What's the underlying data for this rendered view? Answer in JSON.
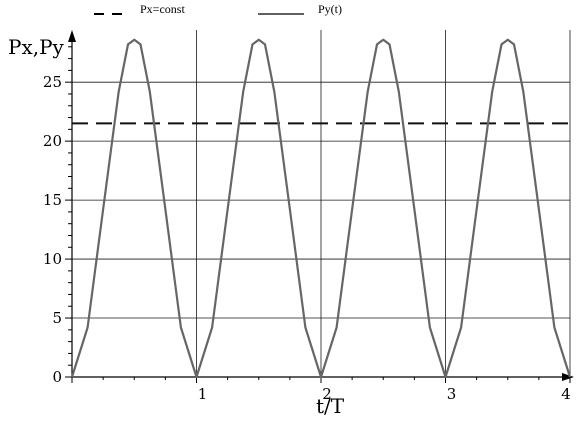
{
  "chart_data": {
    "type": "line",
    "xlabel": "t/T",
    "ylabel": "Px,Py",
    "xlim": [
      0,
      4
    ],
    "ylim": [
      0,
      29
    ],
    "x_ticks": [
      1,
      2,
      3,
      4
    ],
    "x_tick_labels": [
      "1",
      "2",
      "3",
      "4"
    ],
    "y_ticks": [
      0,
      5,
      10,
      15,
      20,
      25
    ],
    "y_tick_labels": [
      "0",
      "5",
      "10",
      "15",
      "20",
      "25"
    ],
    "grid": true,
    "legend_placement": "top-left",
    "legend": [
      {
        "label": "Px=const",
        "style": "dashed",
        "color": "#000000"
      },
      {
        "label": "Py(t)",
        "style": "solid",
        "color": "#000000"
      }
    ],
    "series": [
      {
        "name": "Px=const",
        "style": "dashed",
        "color": "#111111",
        "x": [
          0,
          4
        ],
        "y": [
          21.5,
          21.5
        ]
      },
      {
        "name": "Py(t)",
        "style": "solid",
        "color": "#666666",
        "x": [
          0,
          0.125,
          0.25,
          0.375,
          0.45,
          0.5,
          0.55,
          0.625,
          0.75,
          0.875,
          1.0,
          1.125,
          1.25,
          1.375,
          1.45,
          1.5,
          1.55,
          1.625,
          1.75,
          1.875,
          2.0,
          2.125,
          2.25,
          2.375,
          2.45,
          2.5,
          2.55,
          2.625,
          2.75,
          2.875,
          3.0,
          3.125,
          3.25,
          3.375,
          3.45,
          3.5,
          3.55,
          3.625,
          3.75,
          3.875,
          4.0
        ],
        "y": [
          0,
          4.2,
          14.2,
          24.2,
          28.2,
          28.6,
          28.2,
          24.2,
          14.2,
          4.2,
          0,
          4.2,
          14.2,
          24.2,
          28.2,
          28.6,
          28.2,
          24.2,
          14.2,
          4.2,
          0,
          4.2,
          14.2,
          24.2,
          28.2,
          28.6,
          28.2,
          24.2,
          14.2,
          4.2,
          0,
          4.2,
          14.2,
          24.2,
          28.2,
          28.6,
          28.2,
          24.2,
          14.2,
          4.2,
          0
        ]
      }
    ]
  }
}
